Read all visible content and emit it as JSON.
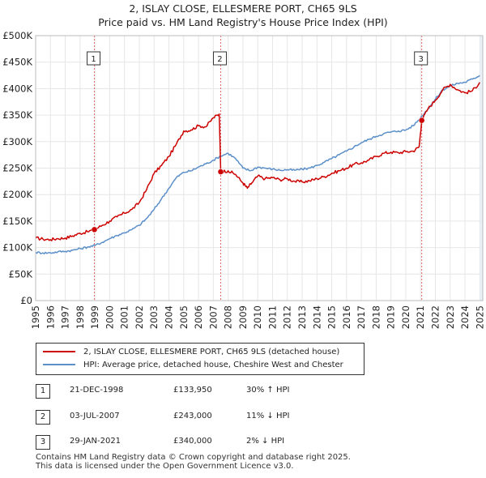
{
  "title_line1": "2, ISLAY CLOSE, ELLESMERE PORT, CH65 9LS",
  "title_line2": "Price paid vs. HM Land Registry's House Price Index (HPI)",
  "colors": {
    "property": "#cc0000",
    "hpi": "#5b8fc9",
    "marker_line": "#dd6666",
    "grid": "#e6e6e6",
    "shade": "#e6edf8"
  },
  "chart_data": {
    "type": "line",
    "ylim": [
      0,
      500000
    ],
    "xlim": [
      1995,
      2025.2
    ],
    "yticks": [
      0,
      50000,
      100000,
      150000,
      200000,
      250000,
      300000,
      350000,
      400000,
      450000,
      500000
    ],
    "ytick_labels": [
      "£0",
      "£50K",
      "£100K",
      "£150K",
      "£200K",
      "£250K",
      "£300K",
      "£350K",
      "£400K",
      "£450K",
      "£500K"
    ],
    "xticks": [
      1995,
      1996,
      1997,
      1998,
      1999,
      2000,
      2001,
      2002,
      2003,
      2004,
      2005,
      2006,
      2007,
      2008,
      2009,
      2010,
      2011,
      2012,
      2013,
      2014,
      2015,
      2016,
      2017,
      2018,
      2019,
      2020,
      2021,
      2022,
      2023,
      2024,
      2025
    ],
    "xtick_labels": [
      "1995",
      "1996",
      "1997",
      "1998",
      "1999",
      "2000",
      "2001",
      "2002",
      "2003",
      "2004",
      "2005",
      "2006",
      "2007",
      "2008",
      "2009",
      "2010",
      "2011",
      "2012",
      "2013",
      "2014",
      "2015",
      "2016",
      "2017",
      "2018",
      "2019",
      "2020",
      "2021",
      "2022",
      "2023",
      "2024",
      "2025"
    ],
    "series": [
      {
        "name": "2, ISLAY CLOSE, ELLESMERE PORT, CH65 9LS (detached house)",
        "x": [
          1995.0,
          1995.5,
          1996.0,
          1996.5,
          1997.0,
          1997.5,
          1998.0,
          1998.5,
          1998.97,
          1999.5,
          2000.0,
          2000.5,
          2001.0,
          2001.5,
          2002.0,
          2002.5,
          2003.0,
          2003.5,
          2004.0,
          2004.5,
          2005.0,
          2005.5,
          2006.0,
          2006.5,
          2007.0,
          2007.4,
          2007.5,
          2008.0,
          2008.5,
          2009.0,
          2009.3,
          2009.6,
          2010.0,
          2010.5,
          2011.0,
          2011.5,
          2012.0,
          2012.5,
          2013.0,
          2013.5,
          2014.0,
          2014.5,
          2015.0,
          2015.5,
          2016.0,
          2016.5,
          2017.0,
          2017.5,
          2018.0,
          2018.5,
          2019.0,
          2019.5,
          2020.0,
          2020.5,
          2020.9,
          2021.08,
          2021.5,
          2022.0,
          2022.5,
          2023.0,
          2023.5,
          2024.0,
          2024.5,
          2025.0
        ],
        "values": [
          118000,
          116000,
          115000,
          117000,
          118000,
          122000,
          127000,
          130000,
          133950,
          142000,
          150000,
          158000,
          165000,
          172000,
          185000,
          210000,
          240000,
          255000,
          272000,
          295000,
          320000,
          322000,
          330000,
          328000,
          345000,
          352000,
          243000,
          245000,
          238000,
          222000,
          212000,
          222000,
          235000,
          230000,
          232000,
          228000,
          230000,
          225000,
          224000,
          226000,
          230000,
          234000,
          240000,
          245000,
          250000,
          257000,
          260000,
          265000,
          272000,
          278000,
          280000,
          279000,
          281000,
          282000,
          290000,
          340000,
          362000,
          378000,
          398000,
          408000,
          398000,
          392000,
          396000,
          412000
        ]
      },
      {
        "name": "HPI: Average price, detached house, Cheshire West and Chester",
        "x": [
          1995.0,
          1995.5,
          1996.0,
          1996.5,
          1997.0,
          1997.5,
          1998.0,
          1998.5,
          1999.0,
          1999.5,
          2000.0,
          2000.5,
          2001.0,
          2001.5,
          2002.0,
          2002.5,
          2003.0,
          2003.5,
          2004.0,
          2004.5,
          2005.0,
          2005.5,
          2006.0,
          2006.5,
          2007.0,
          2007.5,
          2008.0,
          2008.5,
          2009.0,
          2009.5,
          2010.0,
          2010.5,
          2011.0,
          2011.5,
          2012.0,
          2012.5,
          2013.0,
          2013.5,
          2014.0,
          2014.5,
          2015.0,
          2015.5,
          2016.0,
          2016.5,
          2017.0,
          2017.5,
          2018.0,
          2018.5,
          2019.0,
          2019.5,
          2020.0,
          2020.5,
          2021.0,
          2021.5,
          2022.0,
          2022.5,
          2023.0,
          2023.5,
          2024.0,
          2024.5,
          2025.0
        ],
        "values": [
          91000,
          90000,
          90000,
          92000,
          93000,
          95000,
          98000,
          101000,
          104000,
          110000,
          117000,
          123000,
          128000,
          134000,
          142000,
          155000,
          172000,
          192000,
          212000,
          232000,
          242000,
          245000,
          252000,
          258000,
          265000,
          273000,
          278000,
          268000,
          250000,
          245000,
          252000,
          250000,
          248000,
          246000,
          247000,
          246000,
          248000,
          250000,
          255000,
          261000,
          268000,
          275000,
          282000,
          290000,
          298000,
          304000,
          310000,
          315000,
          318000,
          320000,
          322000,
          330000,
          345000,
          362000,
          380000,
          398000,
          405000,
          410000,
          412000,
          418000,
          425000
        ]
      }
    ],
    "transactions": [
      {
        "label": "1",
        "x": 1998.97,
        "value": 133950
      },
      {
        "label": "2",
        "x": 2007.5,
        "value": 243000
      },
      {
        "label": "3",
        "x": 2021.08,
        "value": 340000
      }
    ]
  },
  "legend": {
    "property_label": "2, ISLAY CLOSE, ELLESMERE PORT, CH65 9LS (detached house)",
    "hpi_label": "HPI: Average price, detached house, Cheshire West and Chester"
  },
  "table": [
    {
      "num": "1",
      "date": "21-DEC-1998",
      "price": "£133,950",
      "hpi": "30% ↑ HPI"
    },
    {
      "num": "2",
      "date": "03-JUL-2007",
      "price": "£243,000",
      "hpi": "11% ↓ HPI"
    },
    {
      "num": "3",
      "date": "29-JAN-2021",
      "price": "£340,000",
      "hpi": "2% ↓ HPI"
    }
  ],
  "footer_line1": "Contains HM Land Registry data © Crown copyright and database right 2025.",
  "footer_line2": "This data is licensed under the Open Government Licence v3.0."
}
